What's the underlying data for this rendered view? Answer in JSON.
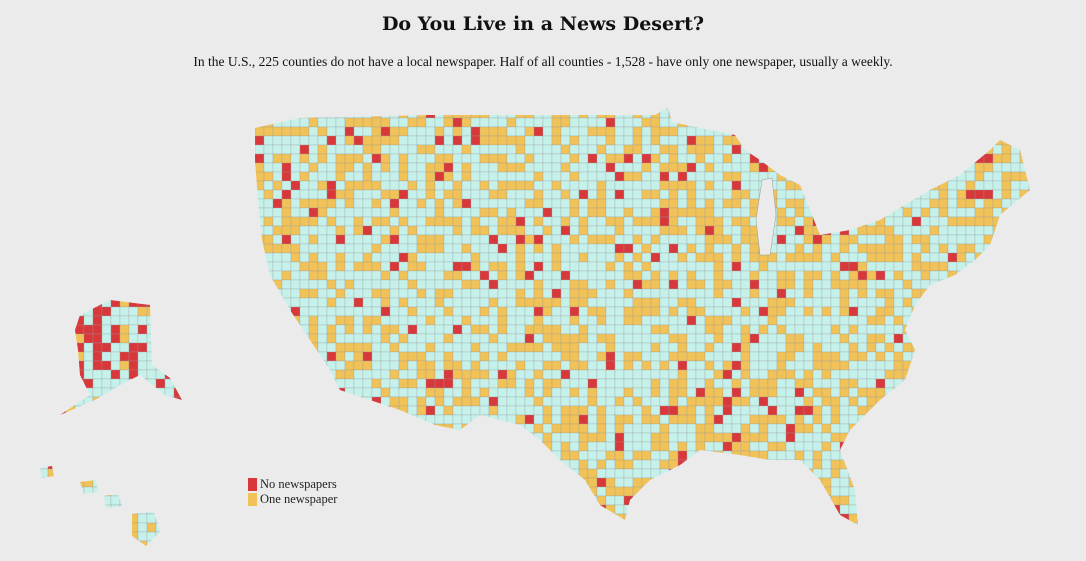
{
  "header": {
    "title": "Do You Live in a News Desert?",
    "subtitle": "In the U.S., 225 counties do not have a local newspaper. Half of all counties - 1,528 - have only one newspaper, usually a weekly."
  },
  "legend": {
    "items": [
      {
        "label": "No newspapers",
        "color": "#d8383a"
      },
      {
        "label": "One newspaper",
        "color": "#f0c257"
      }
    ]
  }
}
